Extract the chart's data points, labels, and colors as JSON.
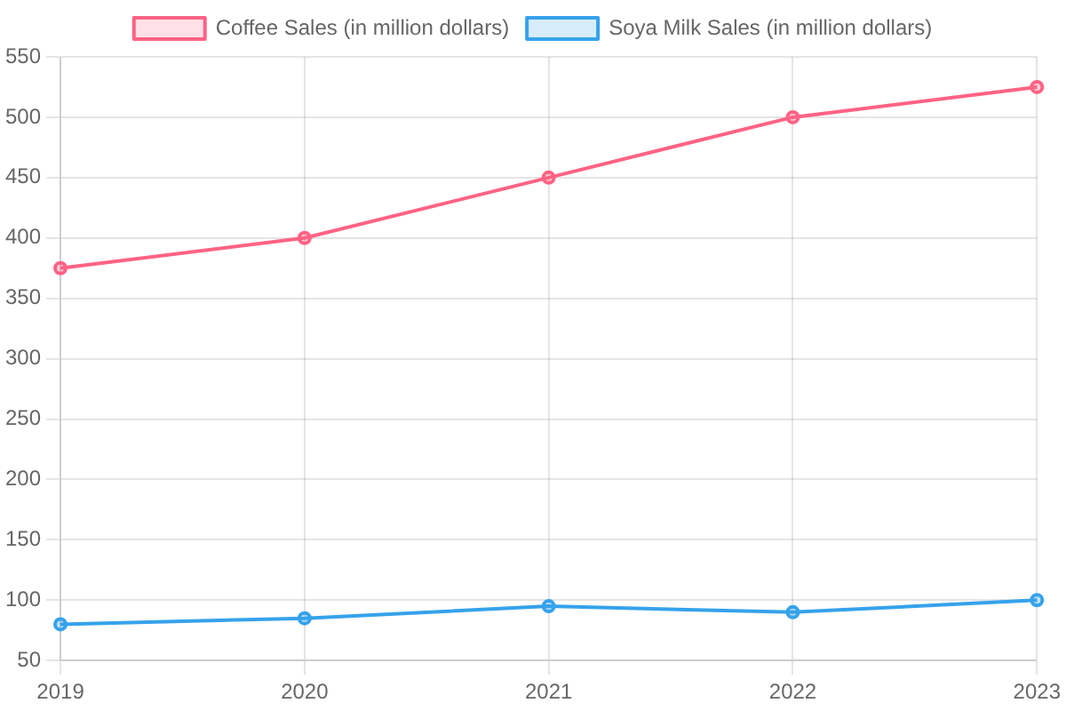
{
  "chart_data": {
    "type": "line",
    "categories": [
      "2019",
      "2020",
      "2021",
      "2022",
      "2023"
    ],
    "series": [
      {
        "name": "Coffee Sales (in million dollars)",
        "color": "#ff6384",
        "values": [
          375,
          400,
          450,
          500,
          525
        ]
      },
      {
        "name": "Soya Milk Sales (in million dollars)",
        "color": "#36a2eb",
        "values": [
          80,
          85,
          95,
          90,
          100
        ]
      }
    ],
    "ylim": [
      50,
      550
    ],
    "yticks": [
      50,
      100,
      150,
      200,
      250,
      300,
      350,
      400,
      450,
      500,
      550
    ],
    "grid": true,
    "legend": "top",
    "marker": "circle",
    "line_style": "solid"
  }
}
